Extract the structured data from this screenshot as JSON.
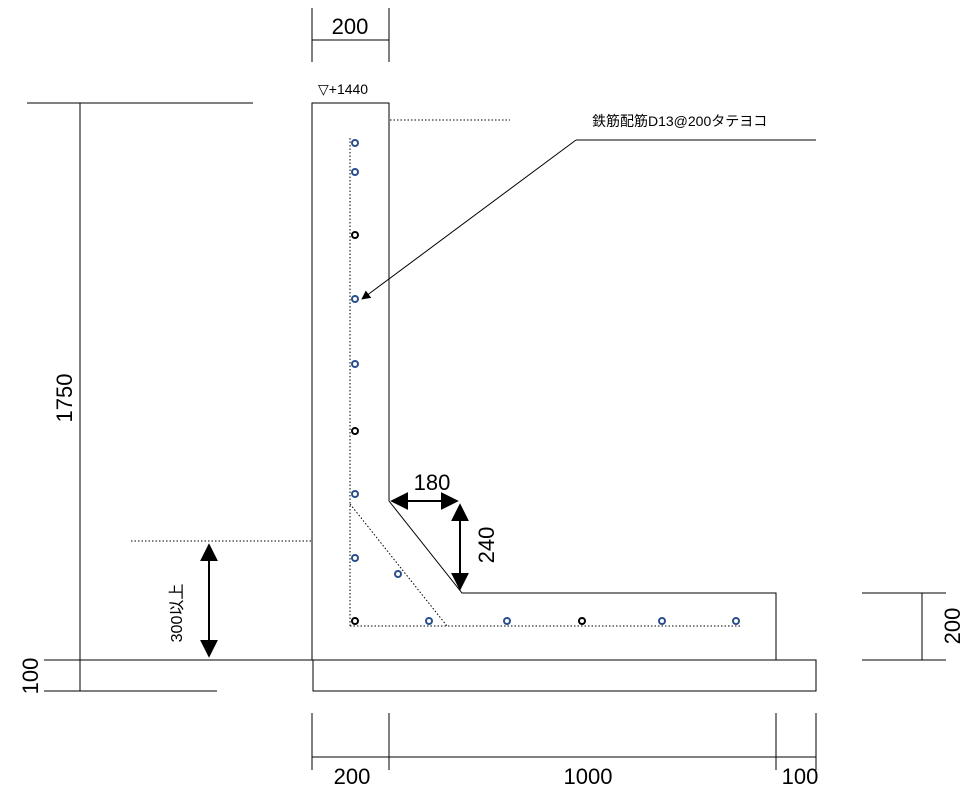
{
  "drawing": {
    "wall_thickness_label": "200",
    "top_level_label": "▽+1440",
    "rebar_note": "鉄筋配筋D13@200タテヨコ",
    "total_height_label": "1750",
    "haunch_width_label": "180",
    "haunch_height_label": "240",
    "embed_depth_label": "300以上",
    "base_concrete_label": "100",
    "slab_thickness_label": "200",
    "bottom_dims": [
      "200",
      "1000",
      "100"
    ]
  },
  "colors": {
    "line": "#000000",
    "rebar_alt": "#2a4f8c"
  }
}
